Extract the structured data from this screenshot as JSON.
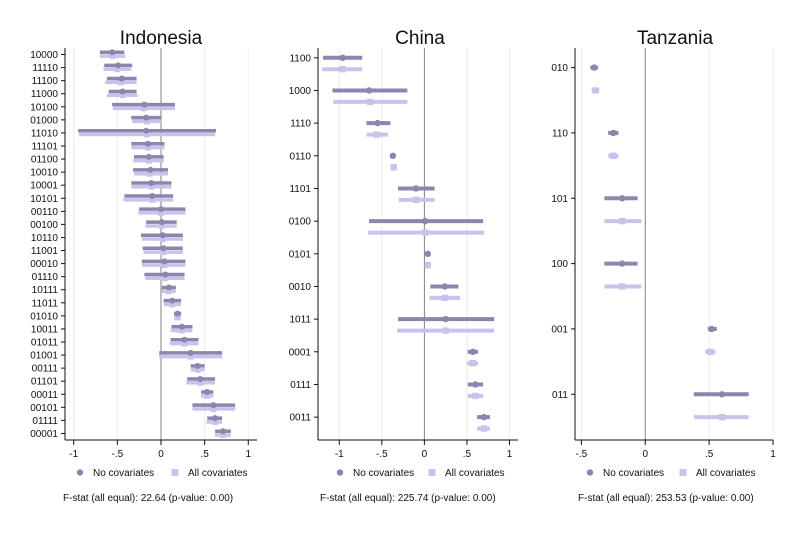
{
  "colors": {
    "no_cov": "#8a86ad",
    "all_cov": "#c9c3ec",
    "zero_line": "#808080",
    "grid": "#ececec",
    "axis": "#111111"
  },
  "chart_data": [
    {
      "type": "coefficient-plot",
      "title": "Indonesia",
      "xlim": [
        -1.1,
        1.1
      ],
      "x_ticks": [
        -1,
        -0.5,
        0,
        0.5,
        1
      ],
      "x_tick_labels": [
        "-1",
        "-.5",
        "0",
        ".5",
        "1"
      ],
      "categories": [
        "10000",
        "11110",
        "11100",
        "11000",
        "10100",
        "01000",
        "11010",
        "11101",
        "01100",
        "10010",
        "10001",
        "10101",
        "00110",
        "00100",
        "10110",
        "11001",
        "00010",
        "01110",
        "10111",
        "11011",
        "01010",
        "10011",
        "01011",
        "01001",
        "00111",
        "01101",
        "00011",
        "00101",
        "01111",
        "00001"
      ],
      "series": [
        {
          "name": "No covariates",
          "marker": "circle",
          "estimates": [
            -0.56,
            -0.49,
            -0.45,
            -0.44,
            -0.19,
            -0.17,
            -0.17,
            -0.15,
            -0.14,
            -0.12,
            -0.11,
            -0.1,
            0.0,
            0.01,
            0.02,
            0.03,
            0.04,
            0.05,
            0.09,
            0.13,
            0.19,
            0.24,
            0.27,
            0.34,
            0.42,
            0.45,
            0.53,
            0.6,
            0.62,
            0.71
          ],
          "ci_low": [
            -0.7,
            -0.65,
            -0.62,
            -0.6,
            -0.56,
            -0.34,
            -0.95,
            -0.34,
            -0.31,
            -0.32,
            -0.34,
            -0.42,
            -0.25,
            -0.17,
            -0.23,
            -0.21,
            -0.22,
            -0.19,
            0.01,
            0.03,
            0.15,
            0.12,
            0.11,
            -0.02,
            0.34,
            0.3,
            0.46,
            0.36,
            0.53,
            0.62
          ],
          "ci_high": [
            -0.42,
            -0.33,
            -0.28,
            -0.28,
            0.16,
            0.0,
            0.63,
            0.04,
            0.03,
            0.08,
            0.12,
            0.14,
            0.28,
            0.18,
            0.25,
            0.25,
            0.28,
            0.27,
            0.17,
            0.23,
            0.23,
            0.36,
            0.43,
            0.7,
            0.5,
            0.62,
            0.6,
            0.85,
            0.7,
            0.8
          ]
        },
        {
          "name": "All covariates",
          "marker": "square",
          "estimates": [
            -0.55,
            -0.5,
            -0.46,
            -0.44,
            -0.2,
            -0.16,
            -0.16,
            -0.15,
            -0.14,
            -0.13,
            -0.11,
            -0.1,
            0.0,
            0.01,
            0.02,
            0.03,
            0.04,
            0.05,
            0.09,
            0.13,
            0.19,
            0.24,
            0.27,
            0.34,
            0.42,
            0.45,
            0.53,
            0.6,
            0.62,
            0.71
          ],
          "ci_low": [
            -0.7,
            -0.66,
            -0.64,
            -0.62,
            -0.55,
            -0.33,
            -0.94,
            -0.34,
            -0.32,
            -0.31,
            -0.34,
            -0.43,
            -0.26,
            -0.18,
            -0.22,
            -0.2,
            -0.22,
            -0.18,
            0.01,
            0.03,
            0.15,
            0.11,
            0.1,
            -0.02,
            0.34,
            0.29,
            0.46,
            0.36,
            0.52,
            0.62
          ],
          "ci_high": [
            -0.41,
            -0.34,
            -0.28,
            -0.27,
            0.16,
            0.0,
            0.62,
            0.04,
            0.03,
            0.08,
            0.12,
            0.14,
            0.28,
            0.18,
            0.25,
            0.25,
            0.28,
            0.27,
            0.17,
            0.23,
            0.23,
            0.36,
            0.43,
            0.7,
            0.5,
            0.62,
            0.6,
            0.85,
            0.7,
            0.8
          ]
        }
      ],
      "legend": [
        "No covariates",
        "All covariates"
      ],
      "legend_position": "bottom",
      "grid": true,
      "note": "F-stat (all equal): 22.64  (p-value: 0.00)"
    },
    {
      "type": "coefficient-plot",
      "title": "China",
      "xlim": [
        -1.25,
        1.1
      ],
      "x_ticks": [
        -1,
        -0.5,
        0,
        0.5,
        1
      ],
      "x_tick_labels": [
        "-1",
        "-.5",
        "0",
        ".5",
        "1"
      ],
      "categories": [
        "1100",
        "1000",
        "1110",
        "0110",
        "1101",
        "0100",
        "0101",
        "0010",
        "1011",
        "0001",
        "0111",
        "0011"
      ],
      "series": [
        {
          "name": "No covariates",
          "marker": "circle",
          "estimates": [
            -0.96,
            -0.65,
            -0.55,
            -0.37,
            -0.1,
            0.01,
            0.04,
            0.24,
            0.25,
            0.57,
            0.6,
            0.7
          ],
          "ci_low": [
            -1.19,
            -1.08,
            -0.68,
            -0.4,
            -0.31,
            -0.65,
            0.02,
            0.07,
            -0.31,
            0.51,
            0.51,
            0.62
          ],
          "ci_high": [
            -0.73,
            -0.2,
            -0.4,
            -0.34,
            0.12,
            0.69,
            0.06,
            0.4,
            0.82,
            0.63,
            0.69,
            0.77
          ]
        },
        {
          "name": "All covariates",
          "marker": "square",
          "estimates": [
            -0.96,
            -0.64,
            -0.56,
            -0.36,
            -0.1,
            0.01,
            0.04,
            0.24,
            0.25,
            0.57,
            0.6,
            0.7
          ],
          "ci_low": [
            -1.2,
            -1.07,
            -0.68,
            -0.39,
            -0.3,
            -0.66,
            0.02,
            0.06,
            -0.32,
            0.5,
            0.51,
            0.62
          ],
          "ci_high": [
            -0.73,
            -0.2,
            -0.43,
            -0.33,
            0.12,
            0.7,
            0.06,
            0.42,
            0.82,
            0.63,
            0.69,
            0.77
          ]
        }
      ],
      "legend": [
        "No covariates",
        "All covariates"
      ],
      "legend_position": "bottom",
      "grid": true,
      "note": "F-stat (all equal): 225.74  (p-value: 0.00)"
    },
    {
      "type": "coefficient-plot",
      "title": "Tanzania",
      "xlim": [
        -0.55,
        1.0
      ],
      "x_ticks": [
        -0.5,
        0,
        0.5,
        1
      ],
      "x_tick_labels": [
        "-.5",
        "0",
        ".5",
        "1"
      ],
      "categories": [
        "010",
        "110",
        "101",
        "100",
        "001",
        "011"
      ],
      "series": [
        {
          "name": "No covariates",
          "marker": "circle",
          "estimates": [
            -0.4,
            -0.25,
            -0.18,
            -0.18,
            0.52,
            0.6
          ],
          "ci_low": [
            -0.43,
            -0.29,
            -0.32,
            -0.32,
            0.49,
            0.38
          ],
          "ci_high": [
            -0.37,
            -0.21,
            -0.06,
            -0.06,
            0.56,
            0.81
          ]
        },
        {
          "name": "All covariates",
          "marker": "square",
          "estimates": [
            -0.39,
            -0.25,
            -0.18,
            -0.18,
            0.51,
            0.6
          ],
          "ci_low": [
            -0.42,
            -0.29,
            -0.32,
            -0.32,
            0.47,
            0.38
          ],
          "ci_high": [
            -0.36,
            -0.21,
            -0.03,
            -0.03,
            0.55,
            0.81
          ]
        }
      ],
      "legend": [
        "No covariates",
        "All covariates"
      ],
      "legend_position": "bottom",
      "grid": true,
      "note": "F-stat (all equal): 253.53  (p-value: 0.00)"
    }
  ]
}
